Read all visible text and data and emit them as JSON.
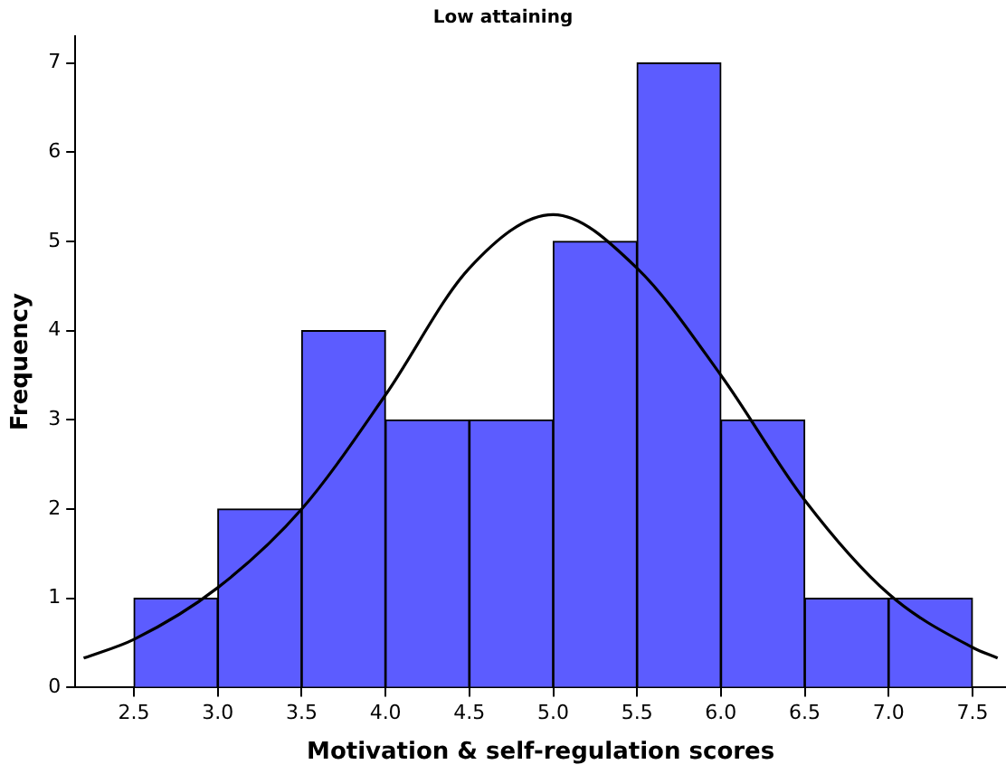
{
  "chart_data": {
    "type": "histogram",
    "title": "Low attaining",
    "xlabel": "Motivation & self-regulation scores",
    "ylabel": "Frequency",
    "bins": [
      2.5,
      3.0,
      3.5,
      4.0,
      4.5,
      5.0,
      5.5,
      6.0,
      6.5,
      7.0,
      7.5
    ],
    "values": [
      1,
      2,
      4,
      3,
      3,
      5,
      7,
      3,
      1,
      1
    ],
    "color": "#5c5cff",
    "series": [
      {
        "type": "line",
        "color": "#000000",
        "x": [
          2.2,
          2.5,
          3.0,
          3.5,
          4.0,
          4.5,
          5.0,
          5.5,
          6.0,
          6.5,
          7.0,
          7.5,
          7.65
        ],
        "values": [
          0.33,
          0.54,
          1.12,
          2.0,
          3.28,
          4.7,
          5.3,
          4.7,
          3.5,
          2.1,
          1.05,
          0.45,
          0.33
        ]
      }
    ],
    "xlim": [
      2.15,
      7.7
    ],
    "ylim": [
      0,
      7.3
    ],
    "xticks": [
      2.5,
      {
        "value": 3,
        "label": "3.0"
      },
      3.5,
      {
        "value": 4,
        "label": "4.0"
      },
      4.5,
      {
        "value": 5,
        "label": "5.0"
      },
      5.5,
      {
        "value": 6,
        "label": "6.0"
      },
      6.5,
      {
        "value": 7,
        "label": "7.0"
      },
      7.5
    ],
    "yticks": [
      0,
      1,
      2,
      3,
      4,
      5,
      6,
      7
    ],
    "grid": false,
    "legend": false,
    "marker": "none"
  }
}
